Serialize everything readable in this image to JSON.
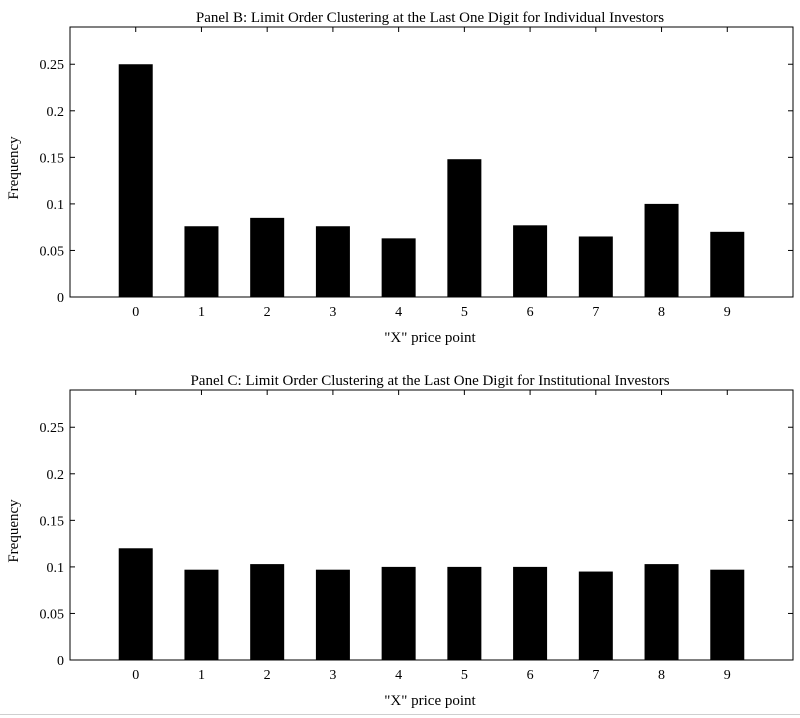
{
  "chart_data": [
    {
      "type": "bar",
      "title": "Panel B: Limit Order Clustering at the Last One Digit for Individual Investors",
      "xlabel": "\"X\" price point",
      "ylabel": "Frequency",
      "categories": [
        "0",
        "1",
        "2",
        "3",
        "4",
        "5",
        "6",
        "7",
        "8",
        "9"
      ],
      "values": [
        0.25,
        0.076,
        0.085,
        0.076,
        0.063,
        0.148,
        0.077,
        0.065,
        0.1,
        0.07
      ],
      "ylim": [
        0,
        0.29
      ],
      "yticks": [
        0,
        0.05,
        0.1,
        0.15,
        0.2,
        0.25
      ],
      "ytick_labels": [
        "0",
        "0.05",
        "0.1",
        "0.15",
        "0.2",
        "0.25"
      ],
      "xlim": [
        -1,
        10
      ],
      "bar_color": "#000000",
      "grid": false
    },
    {
      "type": "bar",
      "title": "Panel C: Limit Order Clustering at the Last One Digit for Institutional Investors",
      "xlabel": "\"X\" price point",
      "ylabel": "Frequency",
      "categories": [
        "0",
        "1",
        "2",
        "3",
        "4",
        "5",
        "6",
        "7",
        "8",
        "9"
      ],
      "values": [
        0.12,
        0.097,
        0.103,
        0.097,
        0.1,
        0.1,
        0.1,
        0.095,
        0.103,
        0.097
      ],
      "ylim": [
        0,
        0.29
      ],
      "yticks": [
        0,
        0.05,
        0.1,
        0.15,
        0.2,
        0.25
      ],
      "ytick_labels": [
        "0",
        "0.05",
        "0.1",
        "0.15",
        "0.2",
        "0.25"
      ],
      "xlim": [
        -1,
        10
      ],
      "bar_color": "#000000",
      "grid": false
    }
  ]
}
